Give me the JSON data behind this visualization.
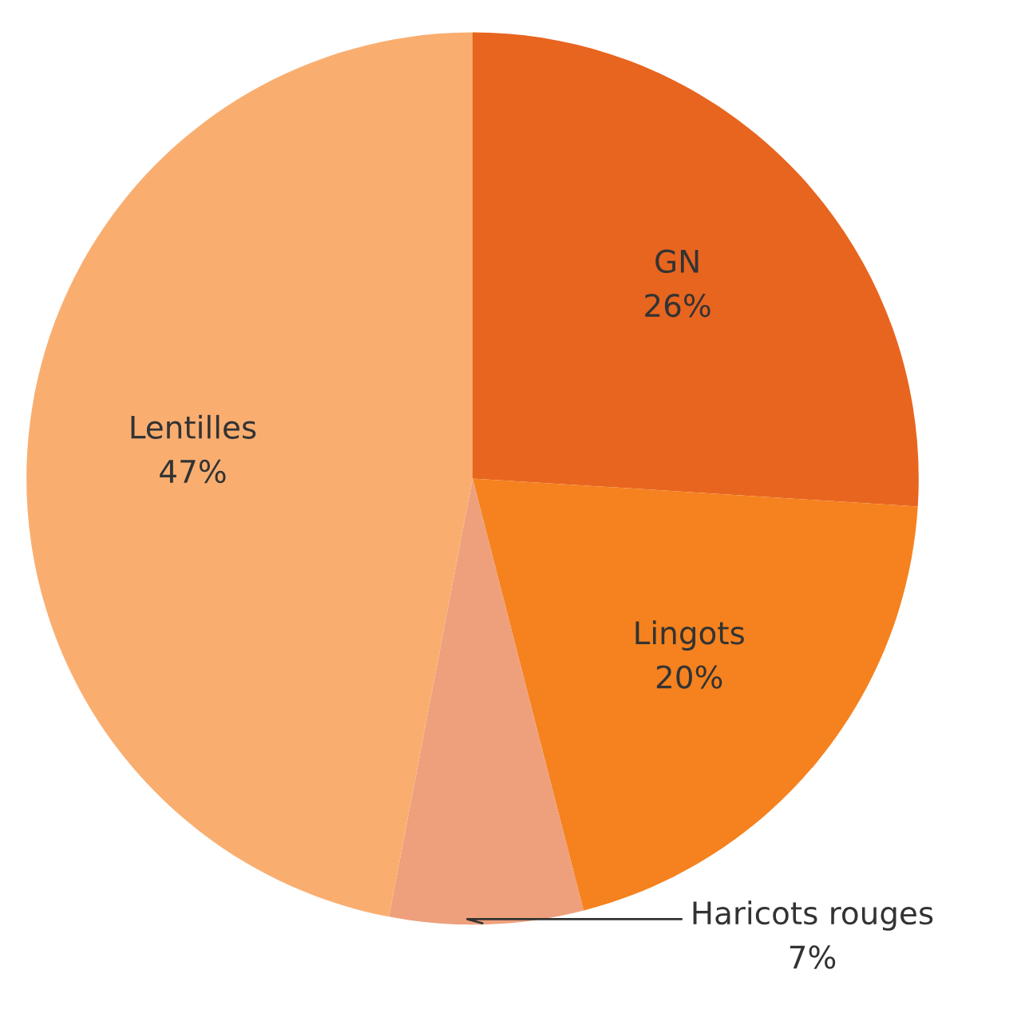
{
  "chart_data": {
    "type": "pie",
    "categories": [
      "GN",
      "Lingots",
      "Haricots rouges",
      "Lentilles"
    ],
    "values": [
      26,
      20,
      7,
      47
    ],
    "value_labels": [
      "26%",
      "20%",
      "7%",
      "47%"
    ],
    "colors": [
      "#e8651f",
      "#f5821f",
      "#eea07c",
      "#f9ae70"
    ],
    "legend": false
  }
}
